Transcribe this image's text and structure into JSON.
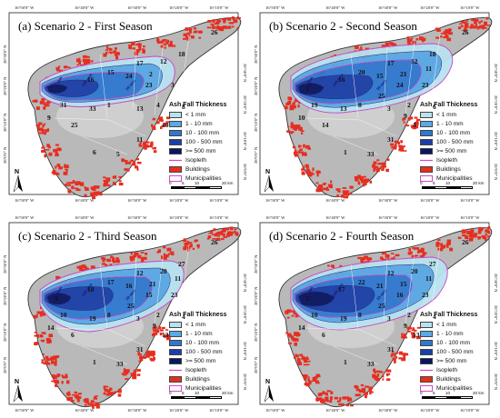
{
  "panels": [
    {
      "title": "(a) Scenario 2 - First Season",
      "zones": [
        "26",
        "18",
        "12",
        "17",
        "15",
        "16",
        "23",
        "24",
        "2",
        "3",
        "4",
        "13",
        "8",
        "10",
        "1",
        "33",
        "31",
        "9",
        "25",
        "6",
        "5",
        "11"
      ]
    },
    {
      "title": "(b) Scenario 2 - Second Season",
      "zones": [
        "26",
        "18",
        "12",
        "17",
        "20",
        "16",
        "24",
        "15",
        "21",
        "23",
        "2",
        "3",
        "6",
        "4",
        "8",
        "13",
        "19",
        "10",
        "14",
        "1",
        "33",
        "31",
        "9",
        "25",
        "11",
        "5"
      ]
    },
    {
      "title": "(c) Scenario 2 - Third Season",
      "zones": [
        "26",
        "27",
        "20",
        "12",
        "17",
        "18",
        "15",
        "16",
        "21",
        "23",
        "2",
        "3",
        "4",
        "13",
        "8",
        "19",
        "10",
        "14",
        "6",
        "1",
        "33",
        "31",
        "9",
        "25",
        "11",
        "5"
      ]
    },
    {
      "title": "(d) Scenario 2 - Fourth Season",
      "zones": [
        "26",
        "27",
        "20",
        "12",
        "22",
        "17",
        "16",
        "21",
        "15",
        "23",
        "2",
        "3",
        "4",
        "13",
        "8",
        "19",
        "10",
        "14",
        "6",
        "1",
        "33",
        "31",
        "9",
        "25",
        "11",
        "5"
      ]
    }
  ],
  "legend": {
    "title": "Ash Fall Thickness",
    "items": [
      {
        "label": "< 1 mm",
        "color": "#b7e3ef"
      },
      {
        "label": "1 - 10 mm",
        "color": "#5aa9e6"
      },
      {
        "label": "10 - 100 mm",
        "color": "#2f78d0"
      },
      {
        "label": "100 - 500 mm",
        "color": "#1b3fa8"
      },
      {
        "label": ">= 500 mm",
        "color": "#0a1660"
      }
    ],
    "isopleth": "Isopleth",
    "buildings": "Buildings",
    "municipalities": "Municipalities",
    "buildings_color": "#e62e20",
    "municipalities_color": "#ffffff"
  },
  "scale": {
    "ticks": [
      "0",
      "5",
      "10",
      "",
      "20 km"
    ]
  },
  "coords": {
    "top": [
      "16°50'0\" W",
      "16°40'0\" W",
      "16°30'0\" W",
      "16°20'0\" W",
      "16°10'0\" W"
    ],
    "left": [
      "28°30'0\" N",
      "28°20'0\" N",
      "28°10'0\" N",
      "28°0'0\" N"
    ],
    "right": [
      "28°30'0\" N",
      "28°20'0\" N",
      "28°10'0\" N",
      "28°0'0\" N"
    ]
  },
  "isopleth_labels": [
    "500 mm",
    "100 mm",
    "10 mm"
  ],
  "north": "N"
}
